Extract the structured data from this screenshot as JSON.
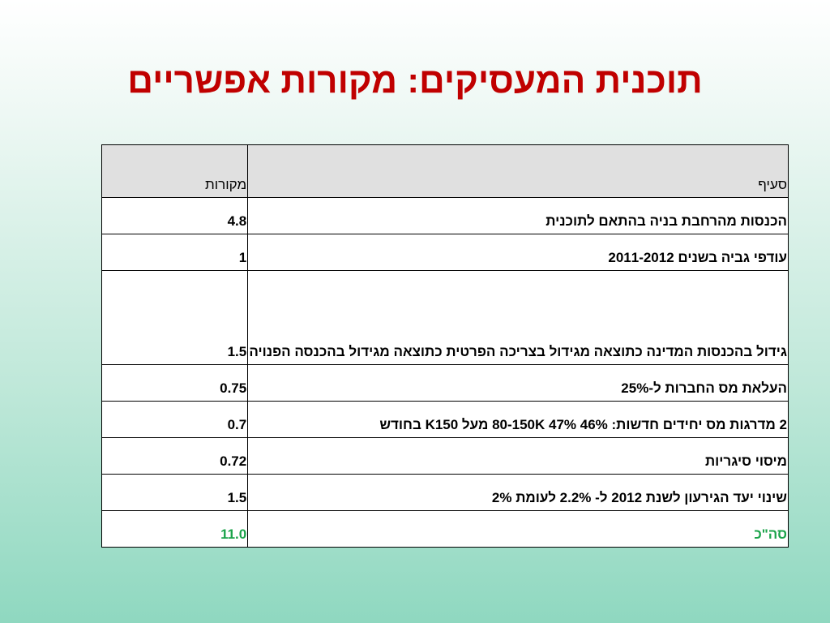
{
  "title": "תוכנית המעסיקים: מקורות אפשריים",
  "table": {
    "headers": {
      "item": "סעיף",
      "sources": "מקורות"
    },
    "rows": [
      {
        "item": "הכנסות מהרחבת בניה בהתאם לתוכנית",
        "value": "4.8"
      },
      {
        "item": "עודפי גביה בשנים 2011-2012",
        "value": "1"
      },
      {
        "item": "גידול בהכנסות המדינה כתוצאה מגידול בצריכה הפרטית כתוצאה מגידול בהכנסה הפנויה",
        "value": "1.5"
      },
      {
        "item": "העלאת מס החברות ל-25%",
        "value": "0.75"
      },
      {
        "item": "2 מדרגות מס יחידים חדשות: 46% 80-150K 47% מעל K150 בחודש",
        "value": "0.7"
      },
      {
        "item": "מיסוי סיגריות",
        "value": "0.72"
      },
      {
        "item": "שינוי יעד הגירעון לשנת 2012 ל- 2.2% לעומת 2%",
        "value": "1.5"
      }
    ],
    "total": {
      "label": "סה\"כ",
      "value": "11.0"
    }
  },
  "colors": {
    "title": "#c00000",
    "total": "#1aa34a",
    "header_bg": "#e0e0e0"
  }
}
